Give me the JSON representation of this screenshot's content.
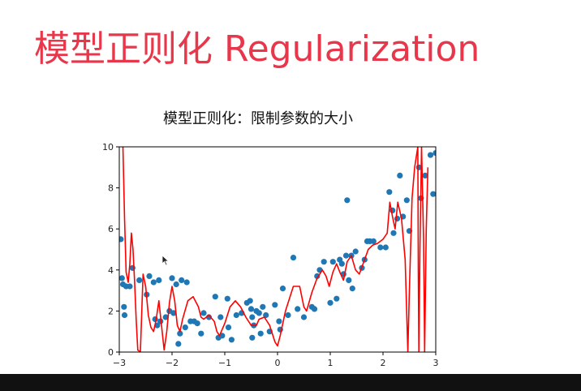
{
  "slide": {
    "title": "模型正则化 Regularization"
  },
  "colors": {
    "title_red": "#e8364a",
    "points": "#1f77b4",
    "curve": "#ff0000",
    "bottom_bar": "#111111"
  },
  "icons": [
    "mouse-pointer-icon"
  ],
  "chart_data": {
    "type": "scatter",
    "title": "模型正则化：限制参数的大小",
    "xlabel": "",
    "ylabel": "",
    "xlim": [
      -3,
      3
    ],
    "ylim": [
      0,
      10
    ],
    "xticks": [
      -3,
      -2,
      -1,
      0,
      1,
      2,
      3
    ],
    "yticks": [
      0,
      2,
      4,
      6,
      8,
      10
    ],
    "xtick_labels": [
      "−3",
      "−2",
      "−1",
      "0",
      "1",
      "2",
      "3"
    ],
    "ytick_labels": [
      "0",
      "2",
      "4",
      "6",
      "8",
      "10"
    ],
    "grid": false,
    "series": [
      {
        "type": "scatter",
        "color": "#1f77b4",
        "points": [
          [
            -2.97,
            5.5
          ],
          [
            -2.95,
            3.6
          ],
          [
            -2.93,
            3.3
          ],
          [
            -2.91,
            2.2
          ],
          [
            -2.9,
            1.8
          ],
          [
            -2.87,
            3.2
          ],
          [
            -2.8,
            3.2
          ],
          [
            -2.75,
            4.1
          ],
          [
            -2.62,
            3.5
          ],
          [
            -2.48,
            2.8
          ],
          [
            -2.43,
            3.7
          ],
          [
            -2.35,
            3.4
          ],
          [
            -2.32,
            1.6
          ],
          [
            -2.28,
            1.3
          ],
          [
            -2.25,
            3.5
          ],
          [
            -2.22,
            1.5
          ],
          [
            -2.12,
            1.7
          ],
          [
            -2.05,
            2.0
          ],
          [
            -2.0,
            3.6
          ],
          [
            -1.97,
            1.9
          ],
          [
            -1.92,
            3.3
          ],
          [
            -1.88,
            0.4
          ],
          [
            -1.85,
            0.9
          ],
          [
            -1.82,
            3.5
          ],
          [
            -1.75,
            1.2
          ],
          [
            -1.72,
            3.4
          ],
          [
            -1.65,
            1.5
          ],
          [
            -1.58,
            1.5
          ],
          [
            -1.52,
            1.4
          ],
          [
            -1.45,
            0.9
          ],
          [
            -1.4,
            1.9
          ],
          [
            -1.3,
            1.7
          ],
          [
            -1.18,
            2.7
          ],
          [
            -1.12,
            0.7
          ],
          [
            -1.08,
            1.7
          ],
          [
            -1.05,
            0.8
          ],
          [
            -0.95,
            2.6
          ],
          [
            -0.93,
            1.2
          ],
          [
            -0.87,
            0.6
          ],
          [
            -0.78,
            1.8
          ],
          [
            -0.68,
            1.9
          ],
          [
            -0.58,
            2.4
          ],
          [
            -0.52,
            2.5
          ],
          [
            -0.5,
            2.1
          ],
          [
            -0.48,
            1.7
          ],
          [
            -0.48,
            0.7
          ],
          [
            -0.45,
            1.3
          ],
          [
            -0.4,
            2.0
          ],
          [
            -0.35,
            1.9
          ],
          [
            -0.32,
            0.9
          ],
          [
            -0.28,
            2.2
          ],
          [
            -0.22,
            1.8
          ],
          [
            -0.15,
            1.0
          ],
          [
            -0.05,
            2.3
          ],
          [
            0.03,
            1.5
          ],
          [
            0.05,
            1.1
          ],
          [
            0.1,
            3.1
          ],
          [
            0.2,
            1.8
          ],
          [
            0.3,
            4.6
          ],
          [
            0.38,
            2.1
          ],
          [
            0.5,
            1.7
          ],
          [
            0.65,
            2.2
          ],
          [
            0.7,
            2.1
          ],
          [
            0.75,
            3.7
          ],
          [
            0.8,
            4.0
          ],
          [
            0.88,
            4.4
          ],
          [
            1.0,
            2.4
          ],
          [
            1.05,
            4.4
          ],
          [
            1.12,
            2.6
          ],
          [
            1.18,
            4.5
          ],
          [
            1.22,
            4.3
          ],
          [
            1.25,
            3.8
          ],
          [
            1.3,
            4.7
          ],
          [
            1.32,
            7.4
          ],
          [
            1.35,
            3.5
          ],
          [
            1.4,
            4.7
          ],
          [
            1.42,
            3.1
          ],
          [
            1.48,
            4.9
          ],
          [
            1.6,
            4.1
          ],
          [
            1.65,
            4.5
          ],
          [
            1.7,
            5.4
          ],
          [
            1.75,
            5.4
          ],
          [
            1.82,
            5.4
          ],
          [
            1.95,
            5.1
          ],
          [
            2.05,
            5.1
          ],
          [
            2.12,
            7.8
          ],
          [
            2.18,
            6.9
          ],
          [
            2.2,
            5.8
          ],
          [
            2.27,
            6.5
          ],
          [
            2.32,
            8.6
          ],
          [
            2.38,
            6.6
          ],
          [
            2.45,
            7.4
          ],
          [
            2.5,
            5.9
          ],
          [
            2.68,
            9.0
          ],
          [
            2.72,
            7.5
          ],
          [
            2.8,
            8.6
          ],
          [
            2.9,
            9.6
          ],
          [
            2.95,
            7.7
          ],
          [
            3.0,
            9.7
          ]
        ]
      },
      {
        "type": "line",
        "color": "#ff0000",
        "points": [
          [
            -2.93,
            10
          ],
          [
            -2.9,
            6.5
          ],
          [
            -2.87,
            3.9
          ],
          [
            -2.83,
            3.4
          ],
          [
            -2.8,
            4.3
          ],
          [
            -2.77,
            5.8
          ],
          [
            -2.74,
            5.0
          ],
          [
            -2.71,
            3.5
          ],
          [
            -2.68,
            1.6
          ],
          [
            -2.65,
            0.1
          ],
          [
            -2.6,
            0
          ],
          [
            -2.55,
            3.8
          ],
          [
            -2.5,
            3.2
          ],
          [
            -2.45,
            1.8
          ],
          [
            -2.4,
            1.2
          ],
          [
            -2.35,
            1.0
          ],
          [
            -2.3,
            1.6
          ],
          [
            -2.25,
            2.5
          ],
          [
            -2.2,
            1.3
          ],
          [
            -2.15,
            0.1
          ],
          [
            -2.1,
            1.0
          ],
          [
            -2.05,
            2.4
          ],
          [
            -2.0,
            3.2
          ],
          [
            -1.95,
            2.5
          ],
          [
            -1.9,
            1.3
          ],
          [
            -1.85,
            1.0
          ],
          [
            -1.8,
            1.6
          ],
          [
            -1.7,
            2.5
          ],
          [
            -1.6,
            2.7
          ],
          [
            -1.5,
            2.2
          ],
          [
            -1.45,
            1.7
          ],
          [
            -1.4,
            1.6
          ],
          [
            -1.3,
            1.8
          ],
          [
            -1.2,
            1.5
          ],
          [
            -1.15,
            1.0
          ],
          [
            -1.1,
            0.8
          ],
          [
            -1.0,
            1.4
          ],
          [
            -0.9,
            2.2
          ],
          [
            -0.8,
            2.5
          ],
          [
            -0.7,
            2.2
          ],
          [
            -0.6,
            1.7
          ],
          [
            -0.5,
            1.3
          ],
          [
            -0.4,
            1.3
          ],
          [
            -0.35,
            1.6
          ],
          [
            -0.25,
            1.7
          ],
          [
            -0.15,
            1.3
          ],
          [
            -0.05,
            0.5
          ],
          [
            0.0,
            0.3
          ],
          [
            0.05,
            0.8
          ],
          [
            0.15,
            2.0
          ],
          [
            0.3,
            3.2
          ],
          [
            0.42,
            3.2
          ],
          [
            0.5,
            2.2
          ],
          [
            0.55,
            2.0
          ],
          [
            0.65,
            2.9
          ],
          [
            0.75,
            3.6
          ],
          [
            0.85,
            4.0
          ],
          [
            0.92,
            3.7
          ],
          [
            0.98,
            3.2
          ],
          [
            1.05,
            3.9
          ],
          [
            1.12,
            4.3
          ],
          [
            1.18,
            3.9
          ],
          [
            1.25,
            3.5
          ],
          [
            1.32,
            4.4
          ],
          [
            1.4,
            4.7
          ],
          [
            1.48,
            4.0
          ],
          [
            1.55,
            3.8
          ],
          [
            1.65,
            4.5
          ],
          [
            1.72,
            5.0
          ],
          [
            1.8,
            5.2
          ],
          [
            1.9,
            5.3
          ],
          [
            2.0,
            5.5
          ],
          [
            2.08,
            5.8
          ],
          [
            2.13,
            7.3
          ],
          [
            2.18,
            6.6
          ],
          [
            2.23,
            6.0
          ],
          [
            2.28,
            7.3
          ],
          [
            2.35,
            6.5
          ],
          [
            2.42,
            4.5
          ],
          [
            2.47,
            0
          ],
          [
            2.5,
            3.0
          ],
          [
            2.55,
            7.5
          ],
          [
            2.6,
            9.0
          ],
          [
            2.66,
            10
          ],
          [
            2.67,
            4.0
          ],
          [
            2.68,
            0
          ],
          [
            2.7,
            5.0
          ],
          [
            2.73,
            10
          ],
          [
            2.77,
            5.5
          ],
          [
            2.79,
            0
          ],
          [
            2.82,
            6.0
          ],
          [
            2.85,
            9.0
          ]
        ]
      }
    ]
  }
}
